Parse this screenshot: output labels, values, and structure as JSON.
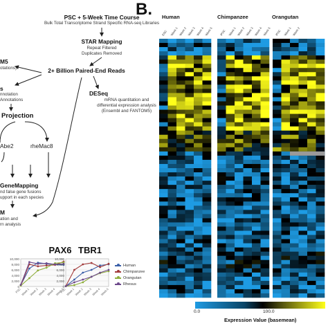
{
  "panel_b": {
    "letter": "B."
  },
  "flow": {
    "top": {
      "title": "PSC + 5-Week Time Course",
      "sub": "Bulk Total Transcriptome Strand Specific RNA-seq Libraries"
    },
    "star": {
      "title": "STAR Mapping",
      "line1": "Repeat Filtered",
      "line2": "Duplicates Removed"
    },
    "reads": {
      "title": "2+ Billion Paired-End Reads"
    },
    "deseq": {
      "title": "DESeq",
      "line1": "mRNA quantitation and",
      "line2": "differential expression analysis",
      "line3": "(Ensembl and FANTOM5)"
    },
    "left_m5": {
      "title": "M5",
      "line1": "otations)"
    },
    "left_s": {
      "title": "s",
      "line1": "nnotation",
      "line2": "Annotations"
    },
    "projection": {
      "title": "Projection"
    },
    "abe2": "Abe2",
    "rhemac8": "rheMac8",
    "genemapping": {
      "title": "GeneMapping",
      "line1": "nd false gene fusions",
      "line2": "upport in each species"
    },
    "left_m": {
      "title": "M",
      "line1": "ation and",
      "line2": "rn analysis"
    }
  },
  "mini_charts": {
    "yticks": [
      "10,000",
      "8,000",
      "6,000",
      "4,000",
      "2,000",
      "0"
    ],
    "xticks": [
      "PSC",
      "Week 1",
      "Week 2",
      "Week 3",
      "Week 4",
      "Week 5"
    ],
    "legend": [
      {
        "name": "Human",
        "color": "#3b5fa8"
      },
      {
        "name": "Chimpanzee",
        "color": "#a23b3b"
      },
      {
        "name": "Orangutan",
        "color": "#8fae3c"
      },
      {
        "name": "Rhesus",
        "color": "#6e4a8c"
      }
    ]
  },
  "heatmap": {
    "species": [
      "Human",
      "Chimpanzee",
      "Orangutan"
    ],
    "columns": {
      "human": [
        "ESC",
        "Week 1",
        "Week 2",
        "Week 3",
        "Week 4",
        "Week 5"
      ],
      "chimp": [
        "iPSC",
        "Week 1",
        "Week 2",
        "Week 3",
        "Week 4",
        "Week 5"
      ],
      "orang": [
        "iPSC",
        "Week 1",
        "Week 2"
      ]
    },
    "colorbar": {
      "ticks": [
        "0.0",
        "100.0"
      ],
      "label": "Expression Value (basemean)",
      "colors": [
        "#1e9be3",
        "#000000",
        "#ffff1a"
      ]
    }
  },
  "chart_data": [
    {
      "type": "line",
      "title": "PAX6",
      "categories": [
        "PSC",
        "Week 1",
        "Week 2",
        "Week 3",
        "Week 4",
        "Week 5"
      ],
      "ylim": [
        0,
        10000
      ],
      "series": [
        {
          "name": "Human",
          "values": [
            500,
            6500,
            8600,
            8200,
            7900,
            7800
          ]
        },
        {
          "name": "Chimpanzee",
          "values": [
            400,
            8000,
            7300,
            7600,
            7800,
            9000
          ]
        },
        {
          "name": "Orangutan",
          "values": [
            300,
            3000,
            5800,
            6800,
            8400,
            8700
          ]
        },
        {
          "name": "Rhesus",
          "values": [
            600,
            8800,
            8200,
            8400,
            8000,
            8200
          ]
        }
      ]
    },
    {
      "type": "line",
      "title": "TBR1",
      "categories": [
        "PSC",
        "Week 1",
        "Week 2",
        "Week 3",
        "Week 4",
        "Week 5"
      ],
      "ylim": [
        0,
        10000
      ],
      "series": [
        {
          "name": "Human",
          "values": [
            100,
            2500,
            5000,
            6000,
            7600,
            8000
          ]
        },
        {
          "name": "Chimpanzee",
          "values": [
            100,
            6000,
            8000,
            8500,
            7000,
            8200
          ]
        },
        {
          "name": "Orangutan",
          "values": [
            100,
            500,
            1500,
            3500,
            4800,
            5500
          ]
        },
        {
          "name": "Rhesus",
          "values": [
            100,
            1500,
            2500,
            3500,
            5000,
            6000
          ]
        }
      ]
    },
    {
      "type": "heatmap",
      "rows": 62,
      "scale": [
        0,
        150
      ],
      "colors": [
        "#1e9be3",
        "#000000",
        "#ffff1a"
      ]
    }
  ]
}
